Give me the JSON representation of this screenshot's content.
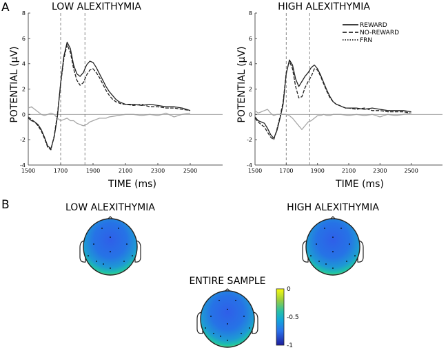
{
  "panel_labels": {
    "a": "A",
    "b": "B"
  },
  "chart_data": [
    {
      "type": "line",
      "title": "LOW ALEXITHYMIA",
      "xlabel": "TIME (ms)",
      "ylabel": "POTENTIAL (µV)",
      "xlim": [
        1500,
        2700
      ],
      "ylim": [
        -4,
        8
      ],
      "xticks": [
        1500,
        1700,
        1900,
        2100,
        2300,
        2500
      ],
      "yticks": [
        -4,
        -2,
        0,
        2,
        4,
        6,
        8
      ],
      "vlines": [
        1700,
        1850
      ],
      "hline": 0,
      "series": [
        {
          "name": "REWARD",
          "style": "solid",
          "color": "#222222",
          "x": [
            1500,
            1520,
            1540,
            1560,
            1580,
            1600,
            1620,
            1640,
            1660,
            1680,
            1700,
            1720,
            1740,
            1760,
            1780,
            1800,
            1820,
            1840,
            1860,
            1880,
            1900,
            1920,
            1940,
            1960,
            1980,
            2000,
            2020,
            2040,
            2060,
            2080,
            2100,
            2150,
            2200,
            2250,
            2300,
            2350,
            2400,
            2450,
            2500
          ],
          "values": [
            -0.3,
            -0.5,
            -0.6,
            -0.8,
            -1.2,
            -1.8,
            -2.5,
            -2.7,
            -1.8,
            -0.2,
            2.5,
            4.6,
            5.7,
            5.2,
            3.9,
            3.2,
            3.0,
            3.3,
            3.9,
            4.2,
            4.1,
            3.7,
            3.2,
            2.7,
            2.2,
            1.8,
            1.5,
            1.2,
            1.0,
            0.9,
            0.8,
            0.8,
            0.7,
            0.8,
            0.7,
            0.6,
            0.6,
            0.5,
            0.3
          ]
        },
        {
          "name": "NO-REWARD",
          "style": "dashed",
          "color": "#222222",
          "x": [
            1500,
            1520,
            1540,
            1560,
            1580,
            1600,
            1620,
            1640,
            1660,
            1680,
            1700,
            1720,
            1740,
            1760,
            1780,
            1800,
            1820,
            1840,
            1860,
            1880,
            1900,
            1920,
            1940,
            1960,
            1980,
            2000,
            2020,
            2040,
            2060,
            2080,
            2100,
            2150,
            2200,
            2250,
            2300,
            2350,
            2400,
            2450,
            2500
          ],
          "values": [
            -0.2,
            -0.4,
            -0.6,
            -0.9,
            -1.3,
            -1.9,
            -2.6,
            -2.8,
            -1.7,
            0.0,
            2.4,
            4.4,
            5.5,
            4.9,
            3.6,
            2.7,
            2.3,
            2.5,
            3.1,
            3.5,
            3.6,
            3.3,
            2.9,
            2.4,
            1.9,
            1.5,
            1.2,
            1.0,
            0.9,
            0.8,
            0.8,
            0.7,
            0.8,
            0.6,
            0.6,
            0.5,
            0.5,
            0.4,
            0.3
          ]
        },
        {
          "name": "FRN",
          "style": "solid",
          "color": "#a6a6a6",
          "x": [
            1500,
            1520,
            1540,
            1560,
            1580,
            1600,
            1620,
            1640,
            1660,
            1680,
            1700,
            1720,
            1740,
            1760,
            1780,
            1800,
            1820,
            1840,
            1860,
            1880,
            1900,
            1920,
            1940,
            1960,
            1980,
            2000,
            2050,
            2100,
            2150,
            2200,
            2250,
            2300,
            2350,
            2400,
            2450,
            2500
          ],
          "values": [
            0.5,
            0.6,
            0.4,
            0.2,
            0.0,
            -0.1,
            0.0,
            0.1,
            0.0,
            -0.3,
            -0.5,
            -0.4,
            -0.3,
            -0.5,
            -0.5,
            -0.7,
            -0.8,
            -0.9,
            -0.8,
            -0.6,
            -0.5,
            -0.4,
            -0.3,
            -0.3,
            -0.3,
            -0.2,
            -0.1,
            0.0,
            0.0,
            -0.1,
            0.0,
            -0.1,
            0.1,
            -0.2,
            0.0,
            0.1
          ]
        }
      ]
    },
    {
      "type": "line",
      "title": "HIGH ALEXITHYMIA",
      "xlabel": "TIME (ms)",
      "ylabel": "POTENTIAL (µV)",
      "xlim": [
        1500,
        2700
      ],
      "ylim": [
        -4,
        8
      ],
      "xticks": [
        1500,
        1700,
        1900,
        2100,
        2300,
        2500
      ],
      "yticks": [
        -4,
        -2,
        0,
        2,
        4,
        6,
        8
      ],
      "vlines": [
        1700,
        1850
      ],
      "hline": 0,
      "legend": [
        "REWARD",
        "NO-REWARD",
        "FRN"
      ],
      "series": [
        {
          "name": "REWARD",
          "style": "solid",
          "color": "#222222",
          "x": [
            1500,
            1520,
            1540,
            1560,
            1580,
            1600,
            1620,
            1640,
            1660,
            1680,
            1700,
            1720,
            1740,
            1760,
            1780,
            1800,
            1820,
            1840,
            1860,
            1880,
            1900,
            1920,
            1940,
            1960,
            1980,
            2000,
            2020,
            2040,
            2060,
            2080,
            2100,
            2150,
            2200,
            2250,
            2300,
            2350,
            2400,
            2450,
            2500
          ],
          "values": [
            -0.2,
            -0.5,
            -0.6,
            -0.7,
            -1.1,
            -1.6,
            -1.9,
            -1.3,
            -0.3,
            0.8,
            3.2,
            4.3,
            3.9,
            2.8,
            2.2,
            2.6,
            3.0,
            3.3,
            3.7,
            3.9,
            3.6,
            3.1,
            2.5,
            1.9,
            1.4,
            1.0,
            0.8,
            0.7,
            0.6,
            0.5,
            0.5,
            0.5,
            0.4,
            0.5,
            0.4,
            0.3,
            0.3,
            0.3,
            0.2
          ]
        },
        {
          "name": "NO-REWARD",
          "style": "dashed",
          "color": "#222222",
          "x": [
            1500,
            1520,
            1540,
            1560,
            1580,
            1600,
            1620,
            1640,
            1660,
            1680,
            1700,
            1720,
            1740,
            1760,
            1780,
            1800,
            1820,
            1840,
            1860,
            1880,
            1900,
            1920,
            1940,
            1960,
            1980,
            2000,
            2020,
            2040,
            2060,
            2080,
            2100,
            2150,
            2200,
            2250,
            2300,
            2350,
            2400,
            2450,
            2500
          ],
          "values": [
            -0.3,
            -0.6,
            -0.8,
            -1.0,
            -1.4,
            -1.8,
            -2.0,
            -1.2,
            -0.2,
            1.0,
            3.3,
            4.2,
            3.6,
            2.2,
            1.3,
            1.4,
            2.1,
            2.6,
            3.0,
            3.6,
            3.5,
            3.0,
            2.4,
            1.8,
            1.3,
            1.0,
            0.8,
            0.7,
            0.6,
            0.5,
            0.5,
            0.4,
            0.5,
            0.3,
            0.3,
            0.2,
            0.2,
            0.2,
            0.1
          ]
        },
        {
          "name": "FRN",
          "style": "solid",
          "color": "#a6a6a6",
          "x": [
            1500,
            1520,
            1540,
            1560,
            1580,
            1600,
            1620,
            1640,
            1660,
            1680,
            1700,
            1720,
            1740,
            1760,
            1780,
            1800,
            1820,
            1840,
            1860,
            1880,
            1900,
            1920,
            1940,
            1960,
            1980,
            2000,
            2050,
            2100,
            2150,
            2200,
            2250,
            2300,
            2350,
            2400,
            2450,
            2500
          ],
          "values": [
            0.3,
            0.1,
            0.2,
            0.3,
            0.4,
            0.1,
            -0.1,
            0.0,
            0.0,
            0.0,
            0.0,
            -0.1,
            -0.3,
            -0.6,
            -0.9,
            -1.2,
            -0.9,
            -0.6,
            -0.5,
            -0.3,
            -0.1,
            -0.1,
            0.0,
            -0.1,
            -0.1,
            0.0,
            0.0,
            -0.1,
            0.0,
            -0.1,
            0.0,
            -0.2,
            0.0,
            -0.1,
            0.0,
            0.1
          ]
        }
      ]
    },
    {
      "type": "heatmap",
      "title": "LOW ALEXITHYMIA",
      "description_values": {
        "center": -0.8,
        "front": -0.85,
        "rim_lower": -0.2
      }
    },
    {
      "type": "heatmap",
      "title": "HIGH ALEXITHYMIA",
      "description_values": {
        "center": -0.8,
        "front": -0.85,
        "rim_lower": -0.25
      }
    },
    {
      "type": "heatmap",
      "title": "ENTIRE SAMPLE",
      "description_values": {
        "center": -0.8,
        "front": -0.85,
        "rim_lower": -0.2
      },
      "colorbar": {
        "min": -1,
        "max": 0,
        "ticks": [
          "0",
          "-0.5",
          "-1"
        ],
        "colormap": "parula"
      }
    }
  ]
}
